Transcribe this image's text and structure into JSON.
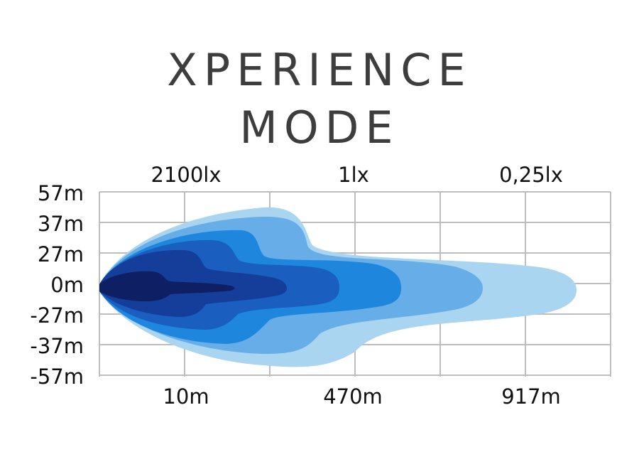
{
  "title": {
    "line1": "XPERIENCE",
    "line2": "MODE"
  },
  "chart_data": {
    "type": "area",
    "title": "XPERIENCE MODE",
    "x_tick_labels": [
      "10m",
      "470m",
      "917m"
    ],
    "y_tick_labels": [
      "57m",
      "37m",
      "27m",
      "0m",
      "-27m",
      "-37m",
      "-57m"
    ],
    "lux_labels": [
      "2100lx",
      "1lx",
      "0,25lx"
    ],
    "grid": true,
    "colors": {
      "zone_outer": "#a9d5f1",
      "zone_2": "#67ade8",
      "zone_3": "#1f86dd",
      "zone_4": "#1a5fbf",
      "zone_5": "#143e9a",
      "zone_core": "#0e1f63",
      "grid": "#bdbdbd"
    }
  }
}
